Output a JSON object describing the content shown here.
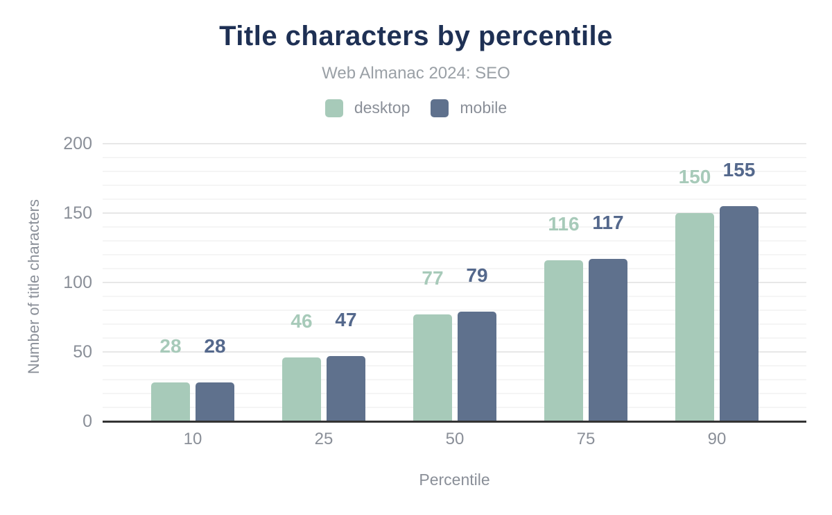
{
  "chart_data": {
    "type": "bar",
    "title": "Title characters by percentile",
    "subtitle": "Web Almanac 2024: SEO",
    "xlabel": "Percentile",
    "ylabel": "Number of title characters",
    "categories": [
      "10",
      "25",
      "50",
      "75",
      "90"
    ],
    "series": [
      {
        "name": "desktop",
        "color": "#a7cab9",
        "label_color": "#a7cab9",
        "values": [
          28,
          46,
          77,
          116,
          150
        ]
      },
      {
        "name": "mobile",
        "color": "#5f718d",
        "label_color": "#54688c",
        "values": [
          28,
          47,
          79,
          117,
          155
        ]
      }
    ],
    "ylim": [
      0,
      200
    ],
    "yticks": [
      "0",
      "50",
      "100",
      "150",
      "200"
    ],
    "minor_grid_step": 10,
    "grid": "on",
    "legend_position": "top",
    "colors": {
      "title": "#1e3054",
      "subtitle": "#9aa0a6",
      "axis_text": "#8a8f98",
      "axis_line": "#333333",
      "major_grid": "#e7e7e7",
      "minor_grid": "#f5f5f5",
      "background": "#ffffff"
    }
  }
}
